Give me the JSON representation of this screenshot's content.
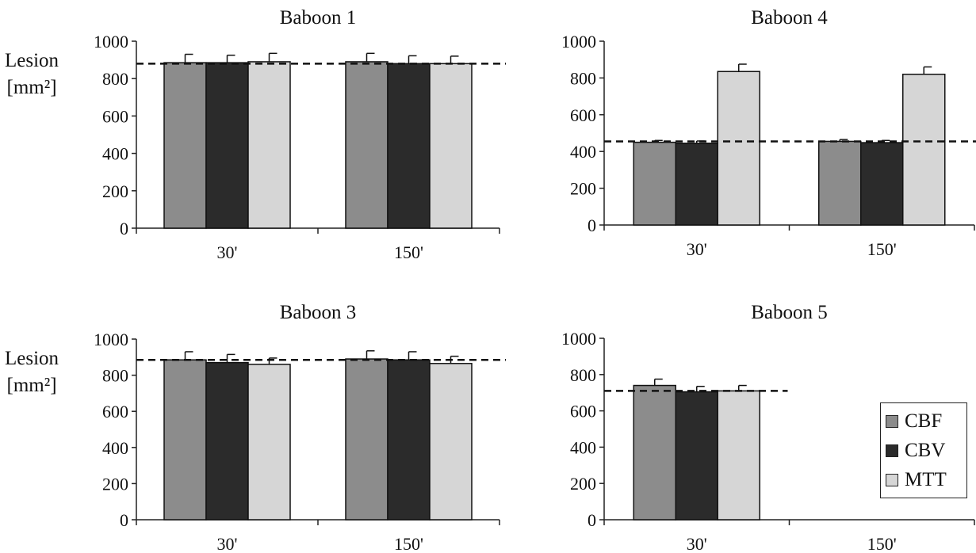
{
  "ylabel": {
    "line1": "Lesion",
    "line2": "[mm²]"
  },
  "legend": [
    {
      "label": "CBF",
      "color": "#8c8c8c"
    },
    {
      "label": "CBV",
      "color": "#2b2b2b"
    },
    {
      "label": "MTT",
      "color": "#d6d6d6"
    }
  ],
  "chart_data": [
    {
      "type": "bar",
      "title": "Baboon 1",
      "categories": [
        "30'",
        "150'"
      ],
      "ylim": [
        0,
        1000
      ],
      "yticks": [
        0,
        200,
        400,
        600,
        800,
        1000
      ],
      "reference_line": 880,
      "series": [
        {
          "name": "CBF",
          "values": [
            885,
            890
          ],
          "errors": [
            45,
            45
          ]
        },
        {
          "name": "CBV",
          "values": [
            885,
            880
          ],
          "errors": [
            40,
            42
          ]
        },
        {
          "name": "MTT",
          "values": [
            890,
            880
          ],
          "errors": [
            45,
            40
          ]
        }
      ]
    },
    {
      "type": "bar",
      "title": "Baboon 4",
      "categories": [
        "30'",
        "150'"
      ],
      "ylim": [
        0,
        1000
      ],
      "yticks": [
        0,
        200,
        400,
        600,
        800,
        1000
      ],
      "reference_line": 455,
      "series": [
        {
          "name": "CBF",
          "values": [
            450,
            455
          ],
          "errors": [
            10,
            10
          ]
        },
        {
          "name": "CBV",
          "values": [
            445,
            448
          ],
          "errors": [
            12,
            12
          ]
        },
        {
          "name": "MTT",
          "values": [
            835,
            820
          ],
          "errors": [
            40,
            40
          ]
        }
      ]
    },
    {
      "type": "bar",
      "title": "Baboon 3",
      "categories": [
        "30'",
        "150'"
      ],
      "ylim": [
        0,
        1000
      ],
      "yticks": [
        0,
        200,
        400,
        600,
        800,
        1000
      ],
      "reference_line": 885,
      "series": [
        {
          "name": "CBF",
          "values": [
            885,
            890
          ],
          "errors": [
            45,
            45
          ]
        },
        {
          "name": "CBV",
          "values": [
            870,
            885
          ],
          "errors": [
            45,
            45
          ]
        },
        {
          "name": "MTT",
          "values": [
            860,
            865
          ],
          "errors": [
            35,
            40
          ]
        }
      ]
    },
    {
      "type": "bar",
      "title": "Baboon 5",
      "categories": [
        "30'",
        "150'"
      ],
      "ylim": [
        0,
        1000
      ],
      "yticks": [
        0,
        200,
        400,
        600,
        800,
        1000
      ],
      "reference_line": 710,
      "series": [
        {
          "name": "CBF",
          "values": [
            740,
            null
          ],
          "errors": [
            35,
            null
          ]
        },
        {
          "name": "CBV",
          "values": [
            705,
            null
          ],
          "errors": [
            30,
            null
          ]
        },
        {
          "name": "MTT",
          "values": [
            710,
            null
          ],
          "errors": [
            30,
            null
          ]
        }
      ]
    }
  ]
}
